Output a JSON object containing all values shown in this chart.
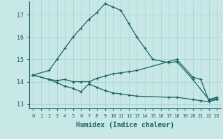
{
  "xlabel": "Humidex (Indice chaleur)",
  "bg_color": "#c8e8e8",
  "grid_color": "#aad4d4",
  "line_color": "#1a6060",
  "xlim": [
    -0.5,
    23.5
  ],
  "ylim": [
    12.8,
    17.6
  ],
  "yticks": [
    13,
    14,
    15,
    16,
    17
  ],
  "xticks": [
    0,
    1,
    2,
    3,
    4,
    5,
    6,
    7,
    8,
    9,
    10,
    11,
    12,
    13,
    14,
    15,
    16,
    17,
    18,
    19,
    20,
    21,
    22,
    23
  ],
  "series": {
    "line1": {
      "x": [
        0,
        2,
        3,
        4,
        5,
        6,
        7,
        8,
        9,
        10,
        11,
        12,
        13,
        14,
        15,
        17,
        18,
        20,
        22,
        23
      ],
      "y": [
        14.3,
        14.5,
        15.0,
        15.5,
        16.0,
        16.4,
        16.8,
        17.1,
        17.5,
        17.35,
        17.2,
        16.6,
        16.0,
        15.5,
        15.0,
        14.85,
        14.9,
        14.1,
        13.2,
        13.3
      ]
    },
    "line2": {
      "x": [
        0,
        2,
        3,
        4,
        5,
        6,
        7,
        8,
        9,
        10,
        11,
        12,
        13,
        17,
        18,
        20,
        21,
        22,
        23
      ],
      "y": [
        14.3,
        14.1,
        14.05,
        14.1,
        14.0,
        14.0,
        14.0,
        14.15,
        14.25,
        14.35,
        14.4,
        14.45,
        14.5,
        14.9,
        15.0,
        14.2,
        14.1,
        13.15,
        13.25
      ]
    },
    "line3": {
      "x": [
        0,
        2,
        3,
        4,
        5,
        6,
        7,
        8,
        9,
        10,
        11,
        12,
        13,
        17,
        18,
        20,
        21,
        22,
        23
      ],
      "y": [
        14.3,
        14.1,
        13.95,
        13.8,
        13.7,
        13.55,
        13.9,
        13.75,
        13.6,
        13.5,
        13.45,
        13.4,
        13.35,
        13.3,
        13.3,
        13.2,
        13.15,
        13.1,
        13.2
      ]
    }
  }
}
